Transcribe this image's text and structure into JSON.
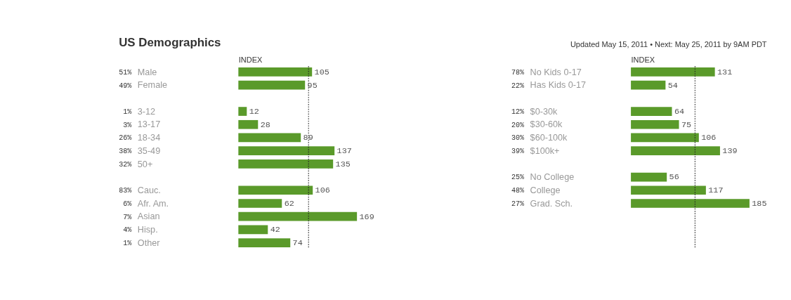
{
  "chart_data": [
    {
      "type": "bar",
      "orientation": "horizontal",
      "title": "US Demographics",
      "xlabel": "INDEX",
      "tick_labels": false,
      "data_labels": true,
      "color": "#5a9a2a",
      "categories": [
        "Male",
        "Female",
        null,
        "3-12",
        "13-17",
        "18-34",
        "35-49",
        "50+",
        null,
        "Cauc.",
        "Afr. Am.",
        "Asian",
        "Hisp.",
        "Other"
      ],
      "values": [
        105,
        95,
        null,
        12,
        28,
        89,
        137,
        135,
        null,
        106,
        62,
        169,
        42,
        74
      ],
      "annotations": [
        "51%",
        "49%",
        "1%",
        "3%",
        "26%",
        "38%",
        "32%",
        "83%",
        "6%",
        "7%",
        "4%",
        "1%"
      ],
      "ref_lines": [
        {
          "axis": "x",
          "value": 100,
          "line_style": "dotted",
          "color": "#222222"
        }
      ]
    },
    {
      "type": "bar",
      "orientation": "horizontal",
      "subtitle": "Updated May 15, 2011 • Next: May 25, 2011 by 9AM PDT",
      "xlabel": "INDEX",
      "tick_labels": false,
      "data_labels": true,
      "color": "#5a9a2a",
      "categories": [
        "No Kids 0-17",
        "Has Kids 0-17",
        null,
        "$0-30k",
        "$30-60k",
        "$60-100k",
        "$100k+",
        null,
        "No College",
        "College",
        "Grad. Sch."
      ],
      "values": [
        131,
        54,
        null,
        64,
        75,
        106,
        139,
        null,
        56,
        117,
        185
      ],
      "annotations": [
        "78%",
        "22%",
        "12%",
        "20%",
        "30%",
        "39%",
        "25%",
        "48%",
        "27%"
      ],
      "ref_lines": [
        {
          "axis": "x",
          "value": 100,
          "line_style": "dotted",
          "color": "#222222"
        }
      ]
    }
  ]
}
